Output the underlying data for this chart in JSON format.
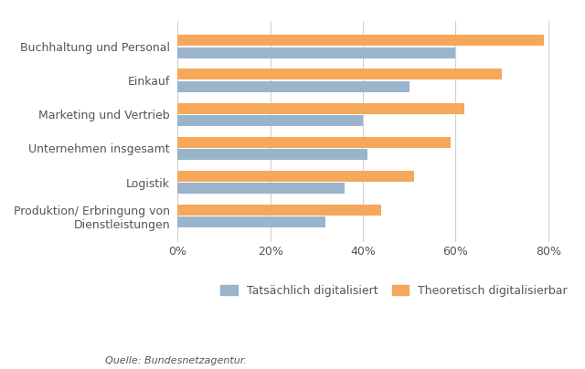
{
  "categories": [
    "Buchhaltung und Personal",
    "Einkauf",
    "Marketing und Vertrieb",
    "Unternehmen insgesamt",
    "Logistik",
    "Produktion/ Erbringung von\nDienstleistungen"
  ],
  "tatsaechlich": [
    60,
    50,
    40,
    41,
    36,
    32
  ],
  "theoretisch": [
    79,
    70,
    62,
    59,
    51,
    44
  ],
  "color_tatsaechlich": "#9ab4cc",
  "color_theoretisch": "#f5a85a",
  "legend_tatsaechlich": "Tatsächlich digitalisiert",
  "legend_theoretisch": "Theoretisch digitalisierbar",
  "source": "Quelle: Bundesnetzagentur.",
  "xlim": [
    0,
    85
  ],
  "xticks": [
    0,
    20,
    40,
    60,
    80
  ],
  "xtick_labels": [
    "0%",
    "20%",
    "40%",
    "60%",
    "80%"
  ],
  "bar_height": 0.32,
  "bar_gap": 0.04,
  "bg_color": "#ffffff",
  "grid_color": "#d0d0d0",
  "text_color": "#555555",
  "label_fontsize": 9,
  "tick_fontsize": 9
}
